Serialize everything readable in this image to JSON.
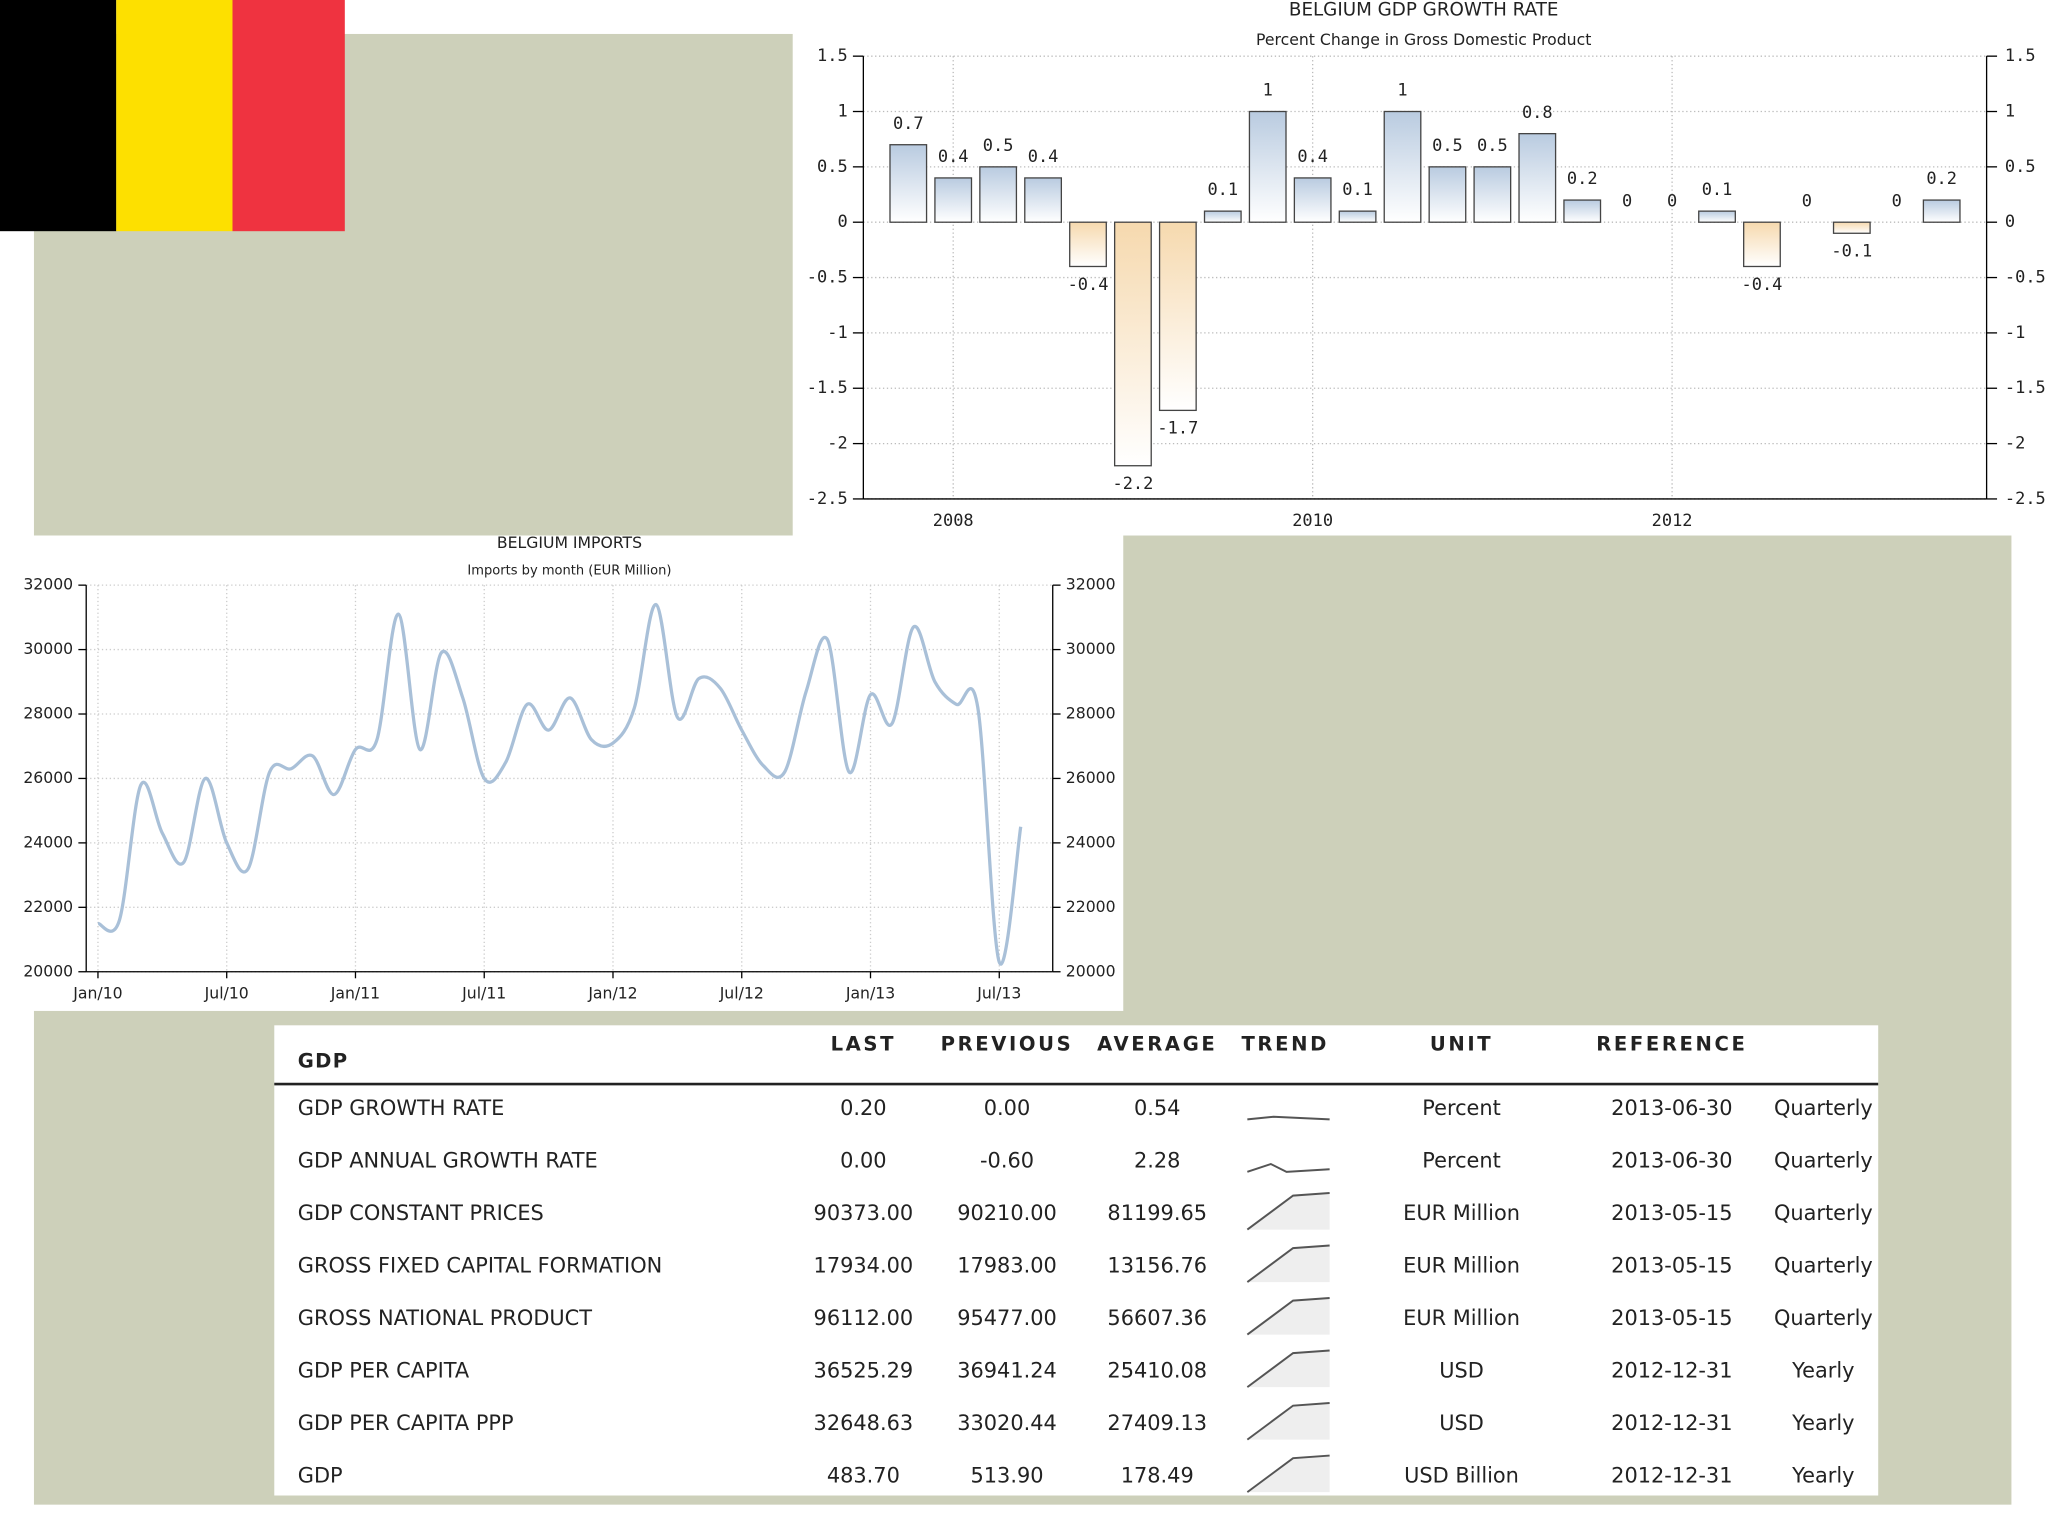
{
  "chart_data": [
    {
      "type": "bar",
      "title": "BELGIUM GDP GROWTH RATE",
      "subtitle": "Percent Change in Gross Domestic Product",
      "categories": [
        null,
        "2008",
        null,
        null,
        null,
        null,
        null,
        null,
        null,
        "2010",
        null,
        null,
        null,
        null,
        null,
        null,
        null,
        "2012",
        null,
        null,
        null,
        null,
        null,
        null
      ],
      "values": [
        0.7,
        0.4,
        0.5,
        0.4,
        -0.4,
        -2.2,
        -1.7,
        0.1,
        1,
        0.4,
        0.1,
        1,
        0.5,
        0.5,
        0.8,
        0.2,
        0,
        0,
        0.1,
        -0.4,
        0,
        -0.1,
        0,
        0.2
      ],
      "color": "#b9cbe0",
      "negative_color": "#f6d9ae",
      "ylim": [
        -2.5,
        1.5
      ],
      "yticks": [
        1.5,
        1,
        0.5,
        0,
        -0.5,
        -1,
        -1.5,
        -2,
        -2.5
      ],
      "grid": true
    },
    {
      "type": "line",
      "title": "BELGIUM IMPORTS",
      "subtitle": "Imports by month (EUR Million)",
      "categories": [
        "Jan/10",
        null,
        null,
        null,
        null,
        null,
        "Jul/10",
        null,
        null,
        null,
        null,
        null,
        "Jan/11",
        null,
        null,
        null,
        null,
        null,
        "Jul/11",
        null,
        null,
        null,
        null,
        null,
        "Jan/12",
        null,
        null,
        null,
        null,
        null,
        "Jul/12",
        null,
        null,
        null,
        null,
        null,
        "Jan/13",
        null,
        null,
        null,
        null,
        null,
        "Jul/13",
        null
      ],
      "values": [
        21500,
        21600,
        25800,
        24300,
        23400,
        26000,
        24000,
        23200,
        26200,
        26300,
        26700,
        25500,
        26900,
        27200,
        31100,
        26900,
        29900,
        28500,
        26000,
        26500,
        28300,
        27500,
        28500,
        27200,
        27100,
        28200,
        31400,
        27900,
        29100,
        28800,
        27500,
        26400,
        26200,
        28700,
        30300,
        26200,
        28600,
        27700,
        30700,
        29000,
        28300,
        28200,
        20300,
        24500
      ],
      "color": "#a9c0d8",
      "ylim": [
        20000,
        32000
      ],
      "yticks": [
        32000,
        30000,
        28000,
        26000,
        24000,
        22000,
        20000
      ],
      "grid": true
    }
  ],
  "table": {
    "title": "GDP",
    "columns": [
      "LAST",
      "PREVIOUS",
      "AVERAGE",
      "TREND",
      "UNIT",
      "REFERENCE"
    ],
    "rows": [
      [
        "GDP GROWTH RATE",
        "0.20",
        "0.00",
        "0.54",
        "Percent",
        "2013-06-30",
        "Quarterly"
      ],
      [
        "GDP ANNUAL GROWTH RATE",
        "0.00",
        "-0.60",
        "2.28",
        "Percent",
        "2013-06-30",
        "Quarterly"
      ],
      [
        "GDP CONSTANT PRICES",
        "90373.00",
        "90210.00",
        "81199.65",
        "EUR Million",
        "2013-05-15",
        "Quarterly"
      ],
      [
        "GROSS FIXED CAPITAL FORMATION",
        "17934.00",
        "17983.00",
        "13156.76",
        "EUR Million",
        "2013-05-15",
        "Quarterly"
      ],
      [
        "GROSS NATIONAL PRODUCT",
        "96112.00",
        "95477.00",
        "56607.36",
        "EUR Million",
        "2013-05-15",
        "Quarterly"
      ],
      [
        "GDP PER CAPITA",
        "36525.29",
        "36941.24",
        "25410.08",
        "USD",
        "2012-12-31",
        "Yearly"
      ],
      [
        "GDP PER CAPITA PPP",
        "32648.63",
        "33020.44",
        "27409.13",
        "USD",
        "2012-12-31",
        "Yearly"
      ],
      [
        "GDP",
        "483.70",
        "513.90",
        "178.49",
        "USD Billion",
        "2012-12-31",
        "Yearly"
      ]
    ]
  }
}
